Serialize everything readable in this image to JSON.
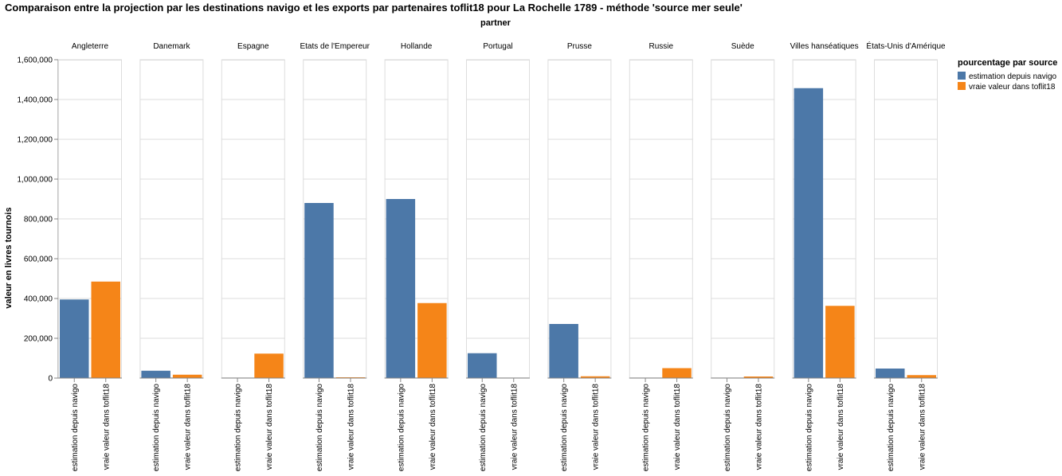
{
  "chart_data": {
    "type": "bar",
    "title": "Comparaison entre la projection par les destinations navigo et les exports par partenaires toflit18 pour La Rochelle 1789 - méthode 'source mer seule'",
    "facet_title": "partner",
    "ylabel": "valeur en livres tournois",
    "ylim": [
      0,
      1600000
    ],
    "yticks": [
      "0",
      "200,000",
      "400,000",
      "600,000",
      "800,000",
      "1,000,000",
      "1,200,000",
      "1,400,000",
      "1,600,000"
    ],
    "ytick_values": [
      0,
      200000,
      400000,
      600000,
      800000,
      1000000,
      1200000,
      1400000,
      1600000
    ],
    "grid": true,
    "legend_title": "pourcentage par source",
    "legend_position": "top-right",
    "categories": [
      "estimation depuis navigo",
      "vraie valeur dans toflit18"
    ],
    "series": [
      {
        "name": "estimation depuis navigo",
        "color": "#4c78a8"
      },
      {
        "name": "vraie valeur dans toflit18",
        "color": "#f58518"
      }
    ],
    "partners": [
      {
        "name": "Angleterre",
        "values": [
          395000,
          485000
        ]
      },
      {
        "name": "Danemark",
        "values": [
          37000,
          17000
        ]
      },
      {
        "name": "Espagne",
        "values": [
          1000,
          123000
        ]
      },
      {
        "name": "Etats de l'Empereur",
        "values": [
          880000,
          4000
        ]
      },
      {
        "name": "Hollande",
        "values": [
          900000,
          377000
        ]
      },
      {
        "name": "Portugal",
        "values": [
          125000,
          1000
        ]
      },
      {
        "name": "Prusse",
        "values": [
          272000,
          9000
        ]
      },
      {
        "name": "Russie",
        "values": [
          2000,
          50000
        ]
      },
      {
        "name": "Suède",
        "values": [
          1000,
          8000
        ]
      },
      {
        "name": "Villes hanséatiques",
        "values": [
          1457000,
          363000
        ]
      },
      {
        "name": "États-Unis d'Amérique",
        "values": [
          48000,
          15000
        ]
      }
    ]
  }
}
